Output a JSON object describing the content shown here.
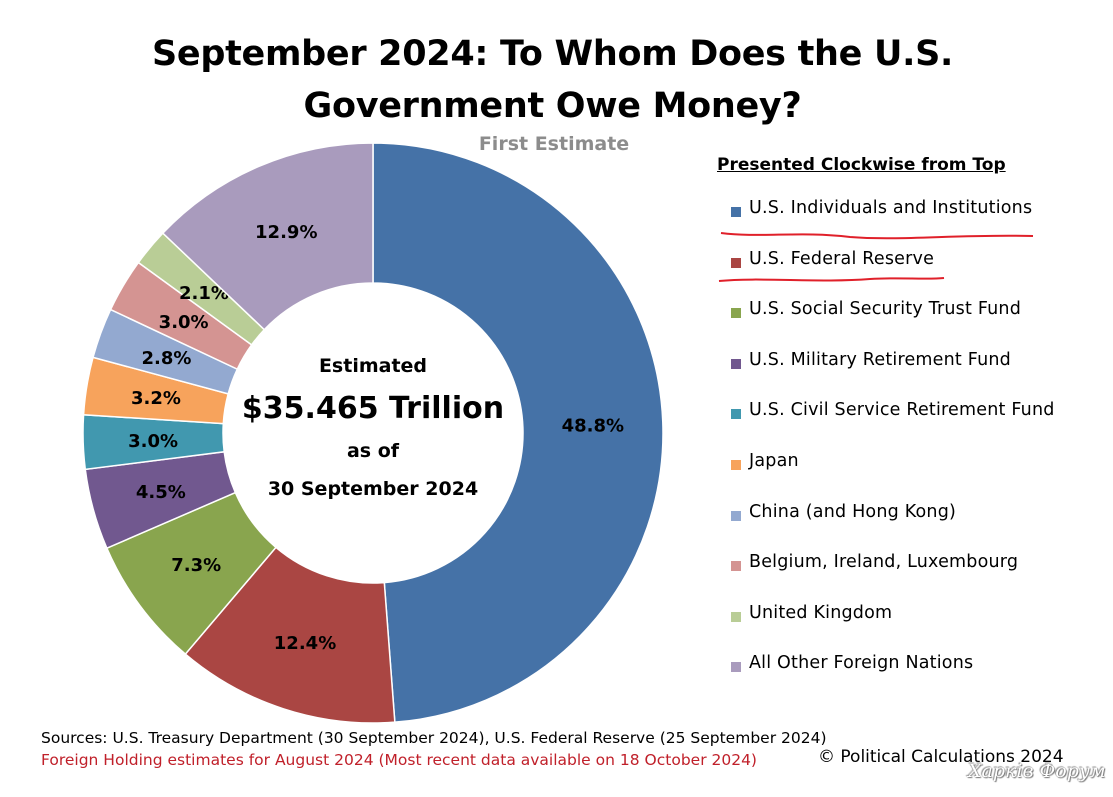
{
  "header": {
    "title_line1": "September 2024: To Whom Does the U.S.",
    "title_line2": "Government Owe Money?",
    "subtitle": "First Estimate"
  },
  "center": {
    "line1": "Estimated",
    "line2": "$35.465 Trillion",
    "line3": "as of",
    "line4": "30 September 2024"
  },
  "legend": {
    "heading": "Presented Clockwise from Top",
    "annotation_color": "#e0202a"
  },
  "sources": {
    "line1": "Sources: U.S. Treasury Department (30 September 2024), U.S. Federal Reserve (25 September 2024)",
    "line2": "Foreign Holding estimates for August 2024 (Most recent data available on 18 October 2024)"
  },
  "copyright": "© Political Calculations 2024",
  "watermark": "Харків Форум",
  "chart_data": {
    "type": "pie",
    "title": "September 2024: To Whom Does the U.S. Government Owe Money?",
    "subtitle": "First Estimate",
    "legend_position": "right",
    "order": "clockwise from top",
    "slices": [
      {
        "name": "U.S. Individuals and Institutions",
        "value": 48.8,
        "label": "48.8%",
        "color": "#4572a7"
      },
      {
        "name": "U.S. Federal Reserve",
        "value": 12.4,
        "label": "12.4%",
        "color": "#aa4643"
      },
      {
        "name": "U.S. Social Security Trust Fund",
        "value": 7.3,
        "label": "7.3%",
        "color": "#89a54e"
      },
      {
        "name": "U.S. Military Retirement Fund",
        "value": 4.5,
        "label": "4.5%",
        "color": "#71588f"
      },
      {
        "name": "U.S. Civil Service Retirement Fund",
        "value": 3.0,
        "label": "3.0%",
        "color": "#4198af"
      },
      {
        "name": "Japan",
        "value": 3.2,
        "label": "3.2%",
        "color": "#f7a35c"
      },
      {
        "name": "China (and Hong Kong)",
        "value": 2.8,
        "label": "2.8%",
        "color": "#93a9d0"
      },
      {
        "name": "Belgium, Ireland, Luxembourg",
        "value": 3.0,
        "label": "3.0%",
        "color": "#d49492"
      },
      {
        "name": "United Kingdom",
        "value": 2.1,
        "label": "2.1%",
        "color": "#b9cd96"
      },
      {
        "name": "All Other Foreign Nations",
        "value": 12.9,
        "label": "12.9%",
        "color": "#a99bbd"
      }
    ]
  }
}
